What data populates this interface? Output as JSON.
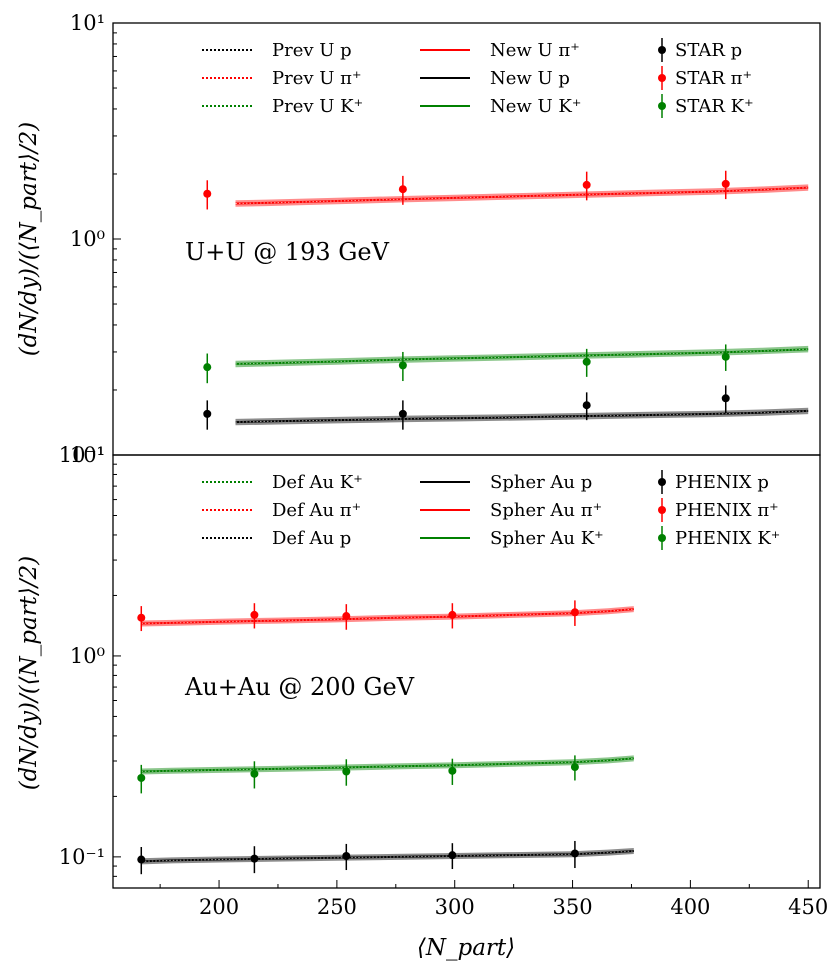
{
  "figure": {
    "xlabel": "⟨N_part⟩",
    "ylabel": "(dN/dy)/(⟨N_part⟩/2)",
    "x_ticks": [
      "200",
      "250",
      "300",
      "350",
      "400",
      "450"
    ]
  },
  "colors": {
    "black": "#000000",
    "red": "#ff0000",
    "green": "#008000"
  },
  "chart_data": [
    {
      "type": "line",
      "panel": "top",
      "annotation": "U+U @ 193 GeV",
      "xlim": [
        155,
        455
      ],
      "ylim": [
        0.1,
        10
      ],
      "yscale": "log",
      "y_ticks": [
        "10⁻¹",
        "10⁰",
        "10¹"
      ],
      "legend": {
        "columns": [
          [
            "Prev U p",
            "Prev U π⁺",
            "Prev U K⁺"
          ],
          [
            "New U π⁺",
            "New U p",
            "New U K⁺"
          ],
          [
            "STAR p",
            "STAR π⁺",
            "STAR K⁺"
          ]
        ],
        "placement": "top"
      },
      "series": [
        {
          "name": "New U π⁺",
          "kind": "band",
          "color": "#ff0000",
          "x": [
            207,
            220,
            250,
            280,
            300,
            320,
            350,
            380,
            410,
            430,
            450
          ],
          "y": [
            1.46,
            1.47,
            1.5,
            1.53,
            1.55,
            1.57,
            1.6,
            1.63,
            1.66,
            1.69,
            1.73
          ]
        },
        {
          "name": "New U K⁺",
          "kind": "band",
          "color": "#008000",
          "x": [
            207,
            220,
            250,
            280,
            300,
            320,
            350,
            380,
            410,
            430,
            450
          ],
          "y": [
            0.264,
            0.266,
            0.271,
            0.277,
            0.28,
            0.283,
            0.288,
            0.293,
            0.298,
            0.303,
            0.309
          ]
        },
        {
          "name": "New U p",
          "kind": "band",
          "color": "#000000",
          "x": [
            207,
            220,
            250,
            280,
            300,
            320,
            350,
            380,
            410,
            430,
            450
          ],
          "y": [
            0.142,
            0.143,
            0.145,
            0.147,
            0.148,
            0.149,
            0.151,
            0.153,
            0.155,
            0.157,
            0.16
          ]
        },
        {
          "name": "STAR π⁺",
          "kind": "points",
          "color": "#ff0000",
          "x": [
            195,
            278,
            356,
            415
          ],
          "y": [
            1.62,
            1.7,
            1.78,
            1.8
          ],
          "err": [
            0.25,
            0.26,
            0.27,
            0.27
          ]
        },
        {
          "name": "STAR K⁺",
          "kind": "points",
          "color": "#008000",
          "x": [
            195,
            278,
            356,
            415
          ],
          "y": [
            0.255,
            0.26,
            0.27,
            0.285
          ],
          "err": [
            0.04,
            0.04,
            0.04,
            0.04
          ]
        },
        {
          "name": "STAR p",
          "kind": "points",
          "color": "#000000",
          "x": [
            195,
            278,
            356,
            415
          ],
          "y": [
            0.155,
            0.155,
            0.17,
            0.183
          ],
          "err": [
            0.024,
            0.024,
            0.025,
            0.027
          ]
        }
      ]
    },
    {
      "type": "line",
      "panel": "bottom",
      "annotation": "Au+Au @ 200 GeV",
      "xlim": [
        155,
        455
      ],
      "ylim": [
        0.07,
        10
      ],
      "yscale": "log",
      "y_ticks": [
        "10⁻¹",
        "10⁰",
        "10¹"
      ],
      "legend": {
        "columns": [
          [
            "Def Au K⁺",
            "Def Au π⁺",
            "Def Au p"
          ],
          [
            "Spher Au p",
            "Spher Au π⁺",
            "Spher Au K⁺"
          ],
          [
            "PHENIX p",
            "PHENIX π⁺",
            "PHENIX K⁺"
          ]
        ],
        "placement": "top"
      },
      "series": [
        {
          "name": "Spher Au π⁺",
          "kind": "band",
          "color": "#ff0000",
          "x": [
            167,
            180,
            200,
            225,
            250,
            275,
            300,
            325,
            350,
            365,
            376
          ],
          "y": [
            1.45,
            1.46,
            1.48,
            1.5,
            1.52,
            1.55,
            1.57,
            1.6,
            1.63,
            1.67,
            1.71
          ]
        },
        {
          "name": "Spher Au K⁺",
          "kind": "band",
          "color": "#008000",
          "x": [
            167,
            180,
            200,
            225,
            250,
            275,
            300,
            325,
            350,
            365,
            376
          ],
          "y": [
            0.266,
            0.268,
            0.271,
            0.274,
            0.278,
            0.282,
            0.286,
            0.291,
            0.296,
            0.302,
            0.309
          ]
        },
        {
          "name": "Spher Au p",
          "kind": "band",
          "color": "#000000",
          "x": [
            167,
            180,
            200,
            225,
            250,
            275,
            300,
            325,
            350,
            365,
            376
          ],
          "y": [
            0.095,
            0.096,
            0.097,
            0.098,
            0.099,
            0.1,
            0.101,
            0.102,
            0.103,
            0.105,
            0.107
          ]
        },
        {
          "name": "PHENIX π⁺",
          "kind": "points",
          "color": "#ff0000",
          "x": [
            167,
            215,
            254,
            299,
            351
          ],
          "y": [
            1.55,
            1.6,
            1.58,
            1.6,
            1.65
          ],
          "err": [
            0.22,
            0.23,
            0.23,
            0.23,
            0.24
          ]
        },
        {
          "name": "PHENIX K⁺",
          "kind": "points",
          "color": "#008000",
          "x": [
            167,
            215,
            254,
            299,
            351
          ],
          "y": [
            0.247,
            0.259,
            0.266,
            0.268,
            0.28
          ],
          "err": [
            0.04,
            0.04,
            0.04,
            0.04,
            0.04
          ]
        },
        {
          "name": "PHENIX p",
          "kind": "points",
          "color": "#000000",
          "x": [
            167,
            215,
            254,
            299,
            351
          ],
          "y": [
            0.097,
            0.098,
            0.101,
            0.102,
            0.104
          ],
          "err": [
            0.015,
            0.015,
            0.015,
            0.015,
            0.016
          ]
        }
      ]
    }
  ]
}
